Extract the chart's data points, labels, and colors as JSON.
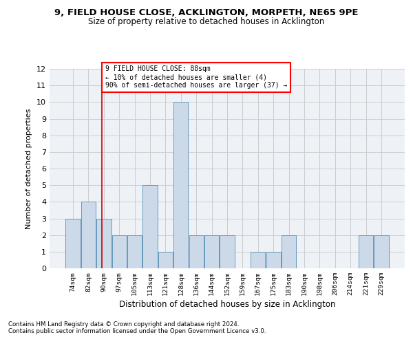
{
  "title1": "9, FIELD HOUSE CLOSE, ACKLINGTON, MORPETH, NE65 9PE",
  "title2": "Size of property relative to detached houses in Acklington",
  "xlabel": "Distribution of detached houses by size in Acklington",
  "ylabel": "Number of detached properties",
  "bins": [
    "74sqm",
    "82sqm",
    "90sqm",
    "97sqm",
    "105sqm",
    "113sqm",
    "121sqm",
    "128sqm",
    "136sqm",
    "144sqm",
    "152sqm",
    "159sqm",
    "167sqm",
    "175sqm",
    "183sqm",
    "190sqm",
    "198sqm",
    "206sqm",
    "214sqm",
    "221sqm",
    "229sqm"
  ],
  "values": [
    3,
    4,
    3,
    2,
    2,
    5,
    1,
    10,
    2,
    2,
    2,
    0,
    1,
    1,
    2,
    0,
    0,
    0,
    0,
    2,
    2
  ],
  "bar_color": "#ccd9e8",
  "bar_edge_color": "#6699bb",
  "red_line_index": 1.85,
  "annotation_lines": [
    "9 FIELD HOUSE CLOSE: 88sqm",
    "← 10% of detached houses are smaller (4)",
    "90% of semi-detached houses are larger (37) →"
  ],
  "annotation_box_color": "white",
  "annotation_box_edge_color": "red",
  "red_line_color": "#cc0000",
  "footnote1": "Contains HM Land Registry data © Crown copyright and database right 2024.",
  "footnote2": "Contains public sector information licensed under the Open Government Licence v3.0.",
  "ylim": [
    0,
    12
  ],
  "yticks": [
    0,
    1,
    2,
    3,
    4,
    5,
    6,
    7,
    8,
    9,
    10,
    11,
    12
  ],
  "grid_color": "#cccccc",
  "background_color": "#eef2f7"
}
